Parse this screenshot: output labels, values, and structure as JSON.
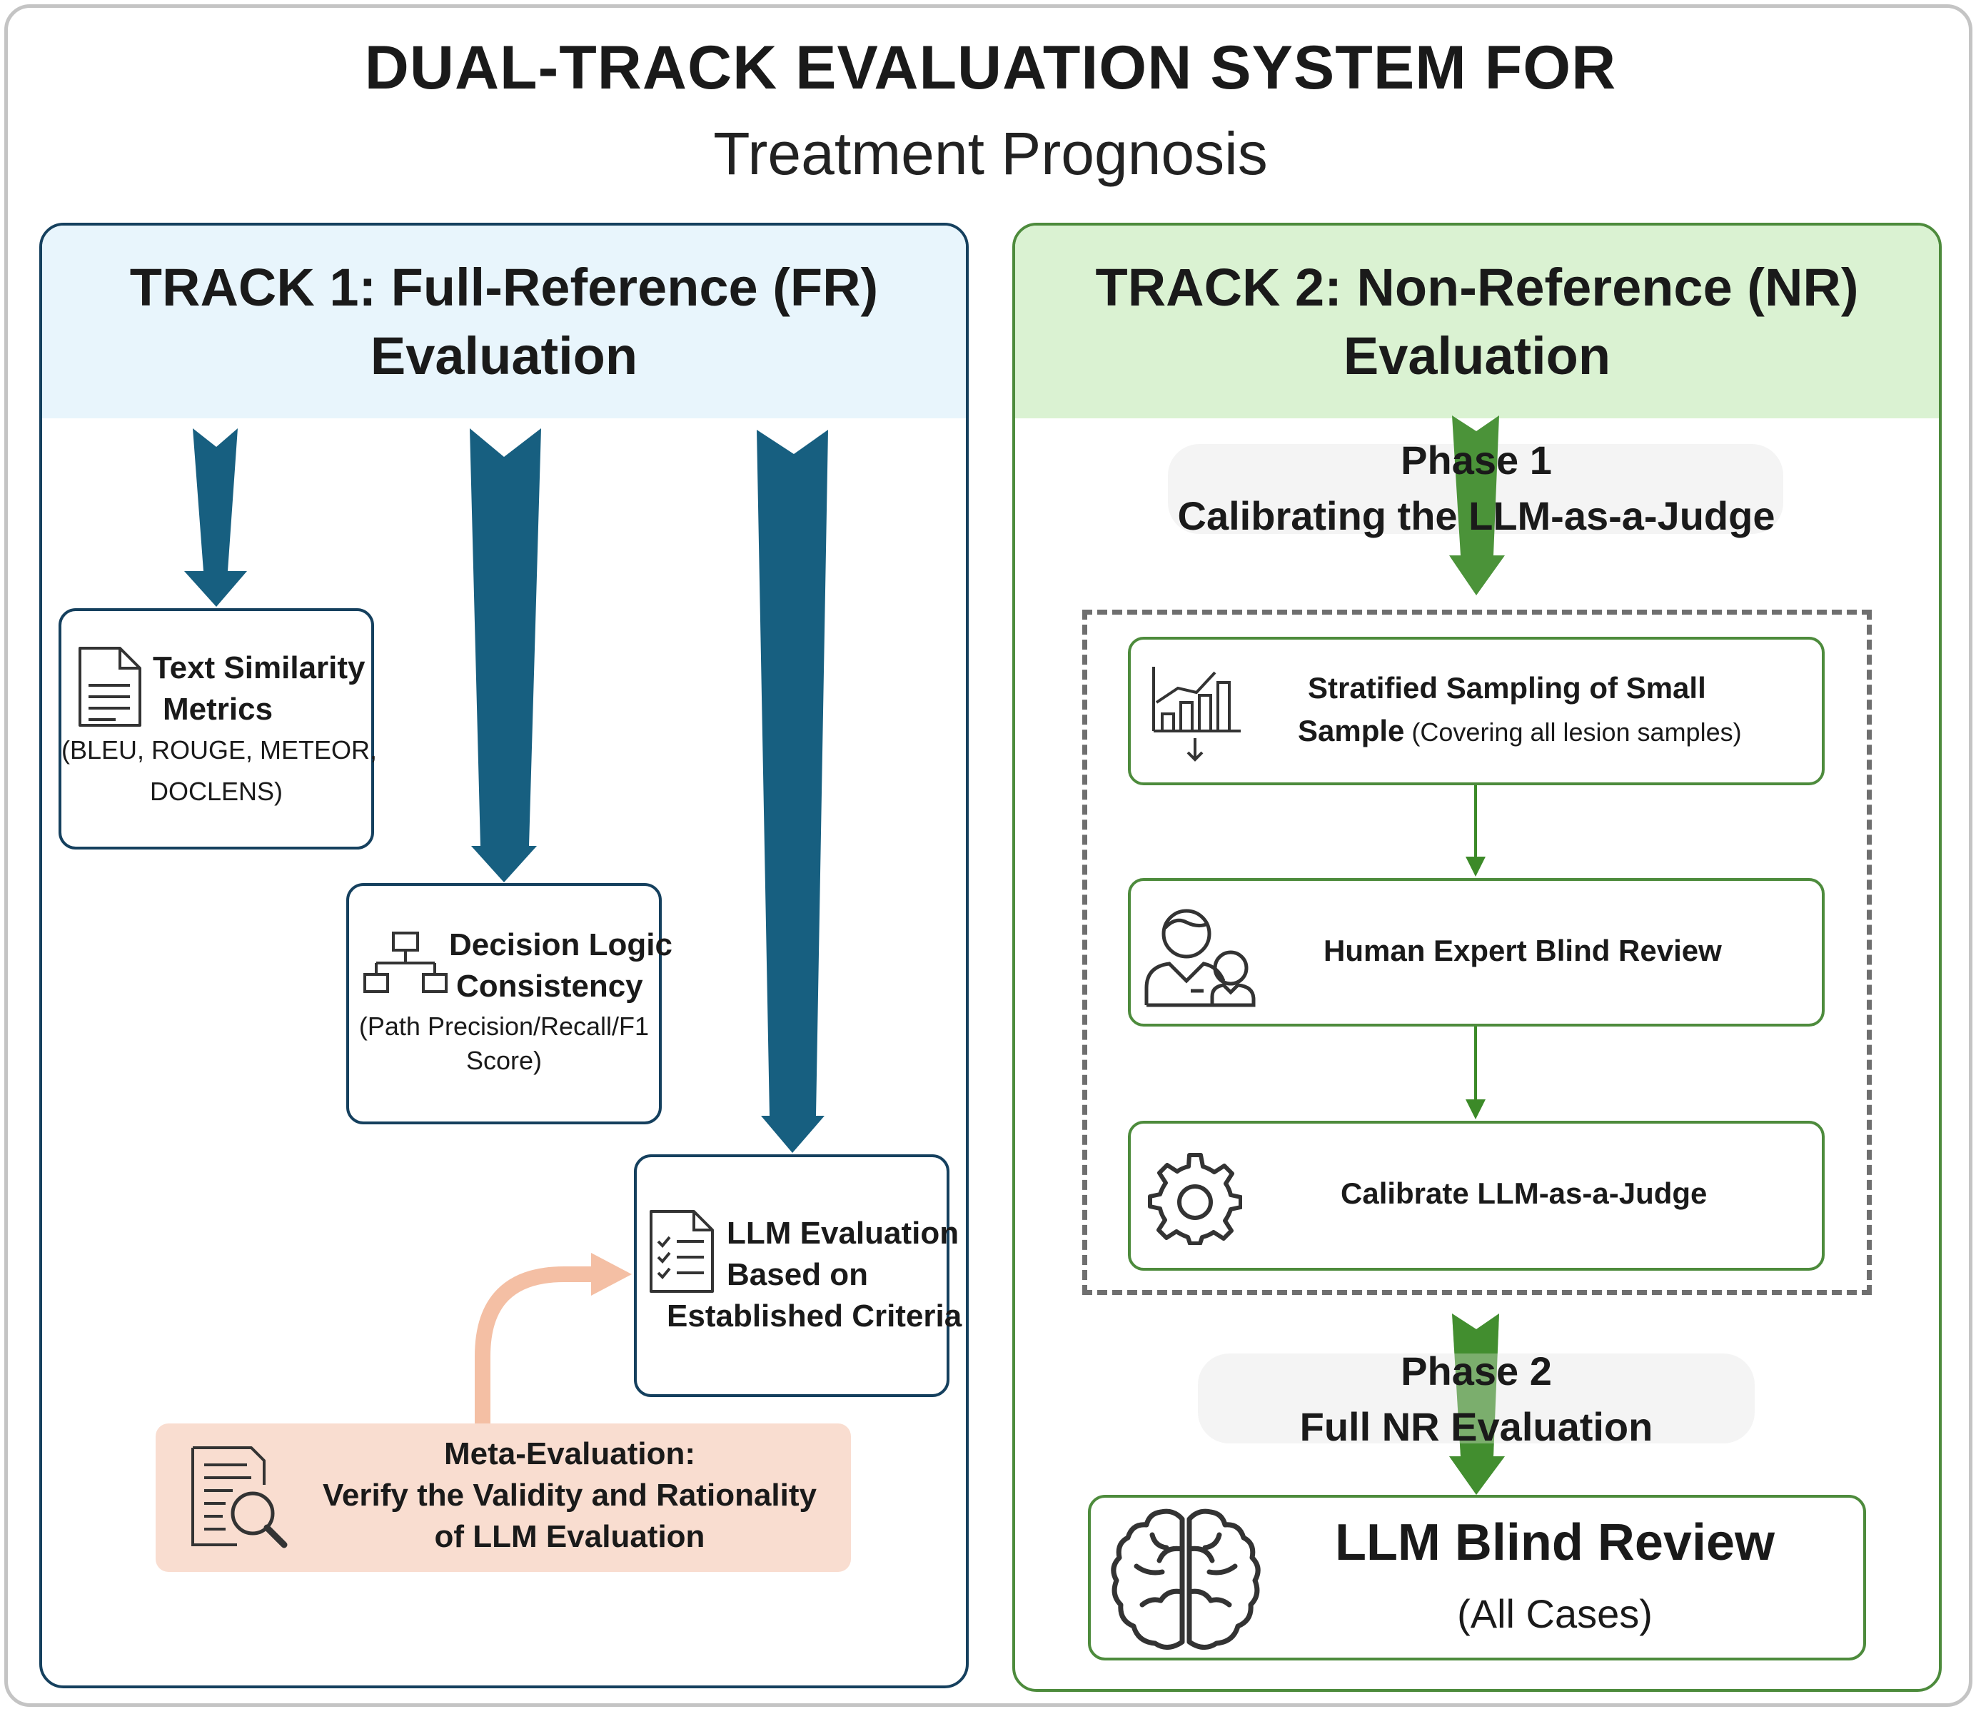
{
  "title": {
    "main": "DUAL-TRACK EVALUATION SYSTEM FOR",
    "sub": "Treatment Prognosis"
  },
  "track1": {
    "heading_line1": "TRACK 1: Full-Reference (FR)",
    "heading_line2": "Evaluation",
    "text_similarity": {
      "title_line1": "Text Similarity",
      "title_line2": "Metrics",
      "detail_line1": "(BLEU, ROUGE, METEOR,",
      "detail_line2": "DOCLENS)"
    },
    "decision_logic": {
      "title_line1": "Decision Logic",
      "title_line2": "Consistency",
      "detail_line1": "(Path Precision/Recall/F1",
      "detail_line2": "Score)"
    },
    "llm_evaluation": {
      "line1": "LLM Evaluation",
      "line2": "Based on",
      "line3": "Established Criteria"
    },
    "meta_evaluation": {
      "line1": "Meta-Evaluation:",
      "line2": "Verify the Validity and Rationality",
      "line3": "of LLM Evaluation"
    }
  },
  "track2": {
    "heading_line1": "TRACK 2: Non-Reference (NR)",
    "heading_line2": "Evaluation",
    "phase1": {
      "line1": "Phase 1",
      "line2": "Calibrating the LLM-as-a-Judge"
    },
    "stratified": {
      "line1": "Stratified Sampling of Small",
      "line2_bold": "Sample",
      "line2_normal": " (Covering all lesion samples)"
    },
    "human_review": "Human Expert Blind Review",
    "calibrate": "Calibrate LLM-as-a-Judge",
    "phase2": {
      "line1": "Phase 2",
      "line2": "Full NR Evaluation"
    },
    "blind_review": {
      "title": "LLM Blind Review",
      "subtitle": "(All Cases)"
    }
  },
  "colors": {
    "fr_dark": "#15405e",
    "fr_arrow": "#175f80",
    "fr_header": "#e8f5fc",
    "nr_green": "#4d8b3c",
    "nr_arrow": "#3c8a28",
    "nr_header": "#daf2d2",
    "meta_fill": "#f9ddd0",
    "meta_arrow": "#f4bfa4"
  }
}
